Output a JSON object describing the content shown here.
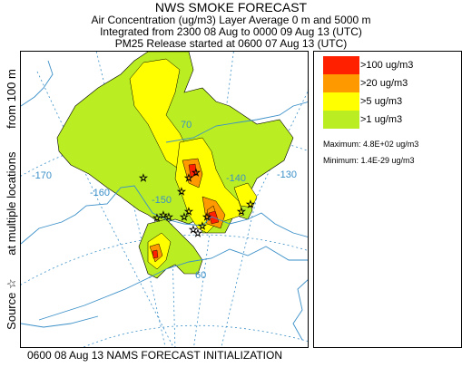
{
  "header": {
    "title": "NWS SMOKE FORECAST",
    "line1": "Air Concentration (ug/m3) Layer Average    0 m and  5000 m",
    "line2": "Integrated from 2300 08 Aug to 0000 09 Aug 13 (UTC)",
    "line3": "PM25 Release started at 0600 07 Aug 13 (UTC)"
  },
  "side_label": {
    "part1": "Source",
    "star": "☆",
    "part2": "at multiple locations",
    "part3": "from   100 m"
  },
  "legend": {
    "items": [
      {
        "label": ">100 ug/m3",
        "color": "#ff2000"
      },
      {
        "label": ">20 ug/m3",
        "color": "#ff9900"
      },
      {
        "label": ">5 ug/m3",
        "color": "#ffff00"
      },
      {
        "label": ">1 ug/m3",
        "color": "#bbee22"
      }
    ],
    "maximum": "Maximum: 4.8E+02 ug/m3",
    "minimum": "Minimum: 1.4E-29 ug/m3"
  },
  "map": {
    "lon_labels": [
      "-170",
      "-160",
      "-150",
      "-140",
      "-130"
    ],
    "lat_labels": [
      "70",
      "60"
    ],
    "colors": {
      "coast": "#3a8fc8",
      "grid": "#3a8fc8",
      "contour": "#000000"
    }
  },
  "footer": "0600 08 Aug 13 NAMS FORECAST INITIALIZATION"
}
